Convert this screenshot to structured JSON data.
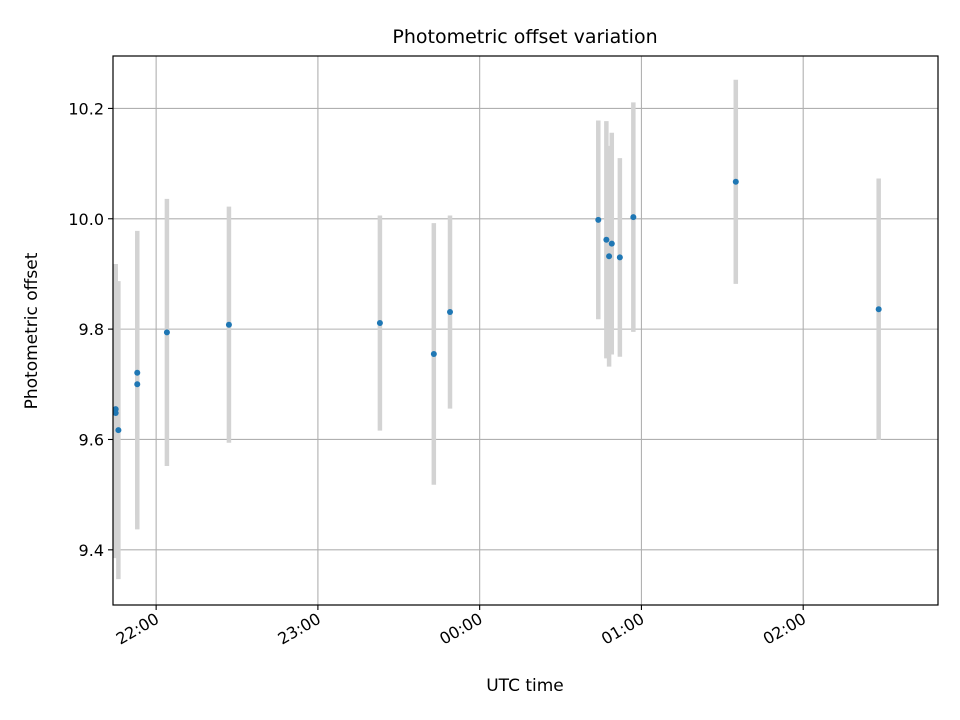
{
  "chart_data": {
    "type": "scatter",
    "title": "Photometric offset variation",
    "xlabel": "UTC time",
    "ylabel": "Photometric offset",
    "xlim": [
      "21:44",
      "02:50"
    ],
    "ylim": [
      9.3,
      10.295
    ],
    "x_ticks": [
      "22:00",
      "23:00",
      "00:00",
      "01:00",
      "02:00"
    ],
    "y_ticks": [
      9.4,
      9.6,
      9.8,
      10.0,
      10.2
    ],
    "grid": true,
    "marker_color": "#1f77b4",
    "errorbar_color": "#d3d3d3",
    "points": [
      {
        "time": "21:45",
        "y": 9.655,
        "err": 0.263
      },
      {
        "time": "21:45",
        "y": 9.648,
        "err": 0.263
      },
      {
        "time": "21:46",
        "y": 9.617,
        "err": 0.27
      },
      {
        "time": "21:53",
        "y": 9.721,
        "err": 0.257
      },
      {
        "time": "21:53",
        "y": 9.7,
        "err": 0.263
      },
      {
        "time": "22:04",
        "y": 9.794,
        "err": 0.242
      },
      {
        "time": "22:27",
        "y": 9.808,
        "err": 0.214
      },
      {
        "time": "23:23",
        "y": 9.811,
        "err": 0.195
      },
      {
        "time": "23:43",
        "y": 9.755,
        "err": 0.237
      },
      {
        "time": "23:49",
        "y": 9.831,
        "err": 0.175
      },
      {
        "time": "00:44",
        "y": 9.998,
        "err": 0.18
      },
      {
        "time": "00:47",
        "y": 9.962,
        "err": 0.215
      },
      {
        "time": "00:48",
        "y": 9.932,
        "err": 0.2
      },
      {
        "time": "00:49",
        "y": 9.955,
        "err": 0.201
      },
      {
        "time": "00:52",
        "y": 9.93,
        "err": 0.18
      },
      {
        "time": "00:57",
        "y": 10.003,
        "err": 0.208
      },
      {
        "time": "01:35",
        "y": 10.067,
        "err": 0.185
      },
      {
        "time": "02:28",
        "y": 9.836,
        "err": 0.237
      }
    ]
  }
}
